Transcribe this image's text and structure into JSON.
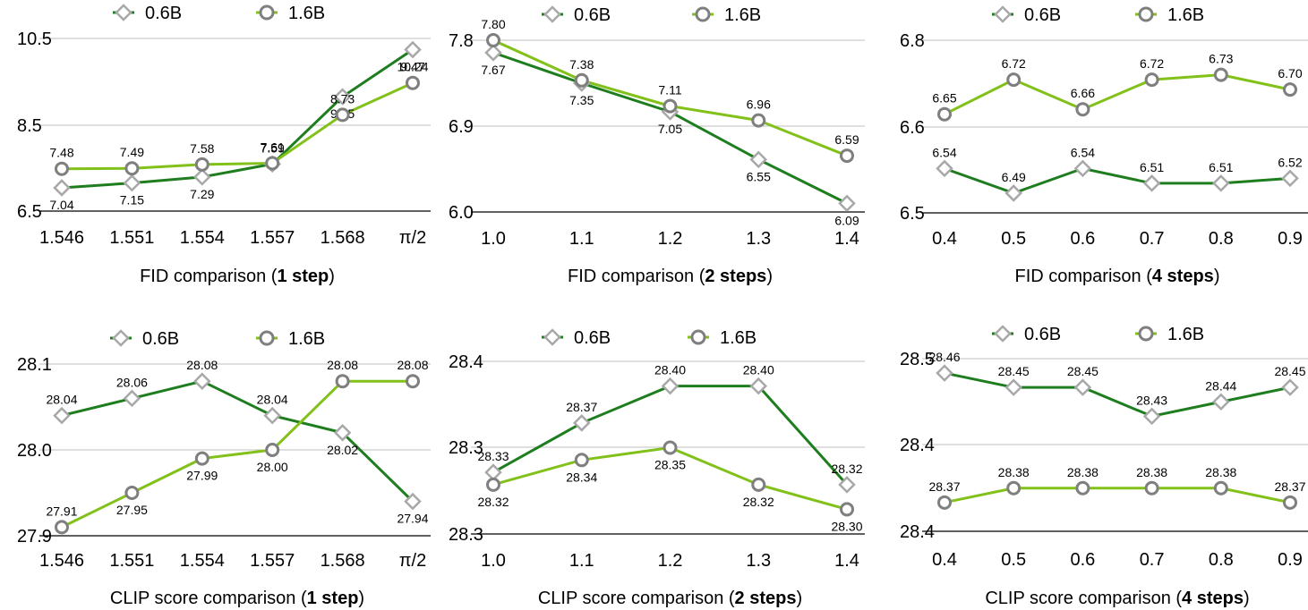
{
  "colors": {
    "series_06b": "#1e7d1e",
    "series_16b": "#82c11a",
    "marker_outline": "#a8a8a8",
    "gridline": "#bfbfbf",
    "axis": "#000000"
  },
  "chart_data": [
    {
      "type": "line",
      "title_prefix": "FID comparison (",
      "title_bold": "1 step",
      "title_suffix": ")",
      "categories": [
        "1.546",
        "1.551",
        "1.554",
        "1.557",
        "1.568",
        "π/2"
      ],
      "yticks": [
        "10.5",
        "8.5",
        "6.5"
      ],
      "ylim": [
        6.5,
        10.5
      ],
      "series": [
        {
          "name": "0.6B",
          "marker": "diamond",
          "values": [
            7.04,
            7.15,
            7.29,
            7.59,
            9.15,
            10.24
          ],
          "labels": [
            "7.04",
            "7.15",
            "7.29",
            "7.59",
            "9.15",
            "10.24"
          ]
        },
        {
          "name": "1.6B",
          "marker": "circle",
          "values": [
            7.48,
            7.49,
            7.58,
            7.61,
            8.73,
            9.47
          ],
          "labels": [
            "7.48",
            "7.49",
            "7.58",
            "7.61",
            "8.73",
            "9.47"
          ]
        }
      ]
    },
    {
      "type": "line",
      "title_prefix": "FID comparison (",
      "title_bold": "2 steps",
      "title_suffix": ")",
      "categories": [
        "1.0",
        "1.1",
        "1.2",
        "1.3",
        "1.4"
      ],
      "yticks": [
        "7.8",
        "6.9",
        "6.0"
      ],
      "ylim": [
        6.0,
        7.8
      ],
      "series": [
        {
          "name": "0.6B",
          "marker": "diamond",
          "values": [
            7.67,
            7.35,
            7.05,
            6.55,
            6.09
          ],
          "labels": [
            "7.67",
            "7.35",
            "7.05",
            "6.55",
            "6.09"
          ]
        },
        {
          "name": "1.6B",
          "marker": "circle",
          "values": [
            7.8,
            7.38,
            7.11,
            6.96,
            6.59
          ],
          "labels": [
            "7.80",
            "7.38",
            "7.11",
            "6.96",
            "6.59"
          ]
        }
      ]
    },
    {
      "type": "line",
      "title_prefix": "FID comparison (",
      "title_bold": "4 steps",
      "title_suffix": ")",
      "categories": [
        "0.4",
        "0.5",
        "0.6",
        "0.7",
        "0.8",
        "0.9"
      ],
      "yticks": [
        "6.8",
        "6.6",
        "6.5"
      ],
      "ylim": [
        6.45,
        6.8
      ],
      "series": [
        {
          "name": "0.6B",
          "marker": "diamond",
          "values": [
            6.54,
            6.49,
            6.54,
            6.51,
            6.51,
            6.52
          ],
          "labels": [
            "6.54",
            "6.49",
            "6.54",
            "6.51",
            "6.51",
            "6.52"
          ]
        },
        {
          "name": "1.6B",
          "marker": "circle",
          "values": [
            6.65,
            6.72,
            6.66,
            6.72,
            6.73,
            6.7
          ],
          "labels": [
            "6.65",
            "6.72",
            "6.66",
            "6.72",
            "6.73",
            "6.70"
          ]
        }
      ]
    },
    {
      "type": "line",
      "title_prefix": "CLIP score comparison (",
      "title_bold": "1 step",
      "title_suffix": ")",
      "categories": [
        "1.546",
        "1.551",
        "1.554",
        "1.557",
        "1.568",
        "π/2"
      ],
      "yticks": [
        "28.1",
        "28.0",
        "27.9"
      ],
      "ylim": [
        27.9,
        28.1
      ],
      "series": [
        {
          "name": "0.6B",
          "marker": "diamond",
          "values": [
            28.04,
            28.06,
            28.08,
            28.04,
            28.02,
            27.94
          ],
          "labels": [
            "28.04",
            "28.06",
            "28.08",
            "28.04",
            "28.02",
            "27.94"
          ]
        },
        {
          "name": "1.6B",
          "marker": "circle",
          "values": [
            27.91,
            27.95,
            27.99,
            28.0,
            28.08,
            28.08
          ],
          "labels": [
            "27.91",
            "27.95",
            "27.99",
            "28.00",
            "28.08",
            "28.08"
          ]
        }
      ]
    },
    {
      "type": "line",
      "title_prefix": "CLIP score comparison (",
      "title_bold": "2 steps",
      "title_suffix": ")",
      "categories": [
        "1.0",
        "1.1",
        "1.2",
        "1.3",
        "1.4"
      ],
      "yticks": [
        "28.4",
        "28.3",
        "28.3"
      ],
      "ylim": [
        28.28,
        28.42
      ],
      "series": [
        {
          "name": "0.6B",
          "marker": "diamond",
          "values": [
            28.33,
            28.37,
            28.4,
            28.4,
            28.32
          ],
          "labels": [
            "28.33",
            "28.37",
            "28.40",
            "28.40",
            "28.32"
          ]
        },
        {
          "name": "1.6B",
          "marker": "circle",
          "values": [
            28.32,
            28.34,
            28.35,
            28.32,
            28.3
          ],
          "labels": [
            "28.32",
            "28.34",
            "28.35",
            "28.32",
            "28.30"
          ]
        }
      ]
    },
    {
      "type": "line",
      "title_prefix": "CLIP score comparison (",
      "title_bold": "4 steps",
      "title_suffix": ")",
      "categories": [
        "0.4",
        "0.5",
        "0.6",
        "0.7",
        "0.8",
        "0.9"
      ],
      "yticks": [
        "28.5",
        "28.4",
        "28.4"
      ],
      "ylim": [
        28.35,
        28.47
      ],
      "series": [
        {
          "name": "0.6B",
          "marker": "diamond",
          "values": [
            28.46,
            28.45,
            28.45,
            28.43,
            28.44,
            28.45
          ],
          "labels": [
            "28.46",
            "28.45",
            "28.45",
            "28.43",
            "28.44",
            "28.45"
          ]
        },
        {
          "name": "1.6B",
          "marker": "circle",
          "values": [
            28.37,
            28.38,
            28.38,
            28.38,
            28.38,
            28.37
          ],
          "labels": [
            "28.37",
            "28.38",
            "28.38",
            "28.38",
            "28.38",
            "28.37"
          ]
        }
      ]
    }
  ]
}
